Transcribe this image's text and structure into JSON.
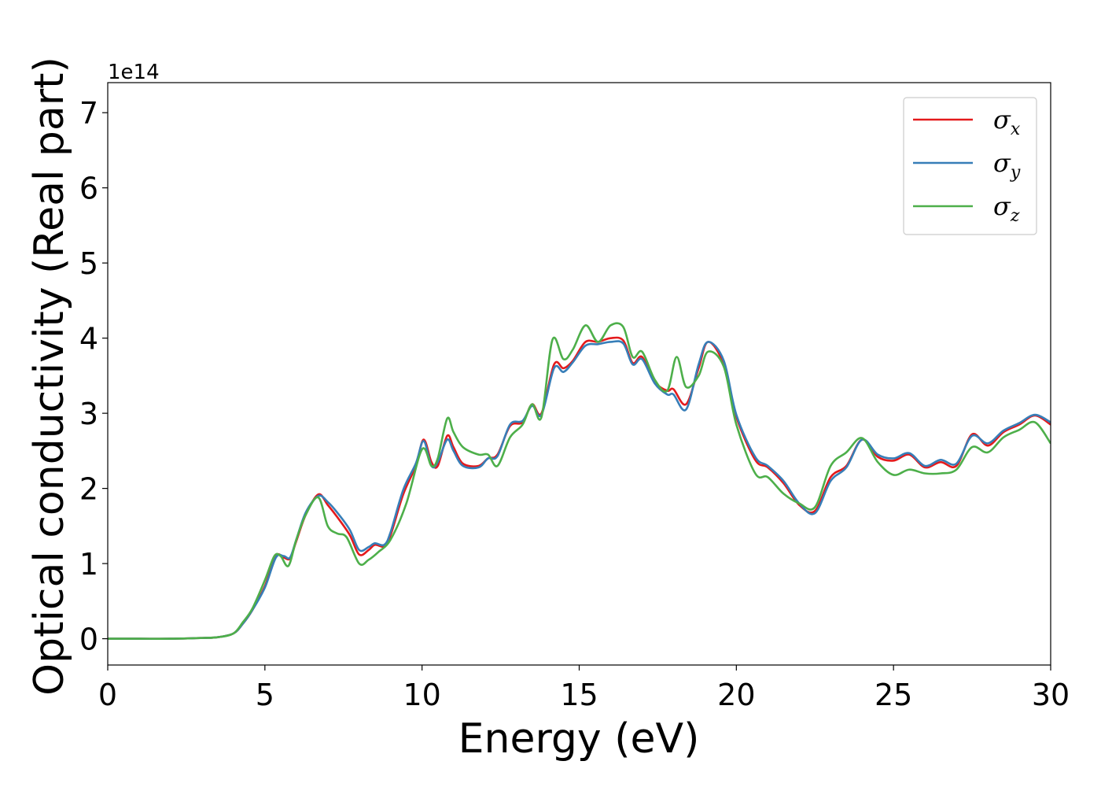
{
  "chart_data": {
    "type": "line",
    "title": "",
    "xlabel": "Energy (eV)",
    "ylabel": "Optical conductivity (Real part)",
    "y_offset_label": "1e14",
    "y_scale_factor": 100000000000000.0,
    "xlim": [
      0,
      30
    ],
    "ylim": [
      -0.35,
      7.4
    ],
    "xticks": [
      0,
      5,
      10,
      15,
      20,
      25,
      30
    ],
    "yticks": [
      0,
      1,
      2,
      3,
      4,
      5,
      6,
      7
    ],
    "grid": false,
    "legend_position": "top-right",
    "series": [
      {
        "name": "σx",
        "legend_symbol": "σ",
        "legend_subscript": "x",
        "color": "#e41a1c",
        "points": [
          [
            0,
            0
          ],
          [
            1,
            0
          ],
          [
            2,
            0
          ],
          [
            3,
            0.01
          ],
          [
            3.5,
            0.02
          ],
          [
            4,
            0.07
          ],
          [
            4.3,
            0.2
          ],
          [
            4.6,
            0.38
          ],
          [
            5,
            0.7
          ],
          [
            5.35,
            1.1
          ],
          [
            5.6,
            1.08
          ],
          [
            5.8,
            1.07
          ],
          [
            6.0,
            1.3
          ],
          [
            6.3,
            1.65
          ],
          [
            6.7,
            1.92
          ],
          [
            7.0,
            1.78
          ],
          [
            7.3,
            1.62
          ],
          [
            7.7,
            1.38
          ],
          [
            8.0,
            1.12
          ],
          [
            8.3,
            1.18
          ],
          [
            8.5,
            1.25
          ],
          [
            8.8,
            1.23
          ],
          [
            9.0,
            1.38
          ],
          [
            9.4,
            1.92
          ],
          [
            9.8,
            2.3
          ],
          [
            10.05,
            2.65
          ],
          [
            10.3,
            2.35
          ],
          [
            10.5,
            2.3
          ],
          [
            10.8,
            2.7
          ],
          [
            11.0,
            2.55
          ],
          [
            11.3,
            2.33
          ],
          [
            11.8,
            2.3
          ],
          [
            12.1,
            2.4
          ],
          [
            12.4,
            2.45
          ],
          [
            12.8,
            2.83
          ],
          [
            13.2,
            2.88
          ],
          [
            13.5,
            3.12
          ],
          [
            13.8,
            3.0
          ],
          [
            14.2,
            3.65
          ],
          [
            14.5,
            3.6
          ],
          [
            14.8,
            3.7
          ],
          [
            15.2,
            3.95
          ],
          [
            15.6,
            3.95
          ],
          [
            16.0,
            4.0
          ],
          [
            16.4,
            3.97
          ],
          [
            16.7,
            3.67
          ],
          [
            17.0,
            3.75
          ],
          [
            17.4,
            3.42
          ],
          [
            17.8,
            3.3
          ],
          [
            18.0,
            3.32
          ],
          [
            18.4,
            3.12
          ],
          [
            18.8,
            3.6
          ],
          [
            19.1,
            3.95
          ],
          [
            19.6,
            3.65
          ],
          [
            20.0,
            2.95
          ],
          [
            20.6,
            2.38
          ],
          [
            21.0,
            2.28
          ],
          [
            21.5,
            2.07
          ],
          [
            22.0,
            1.78
          ],
          [
            22.5,
            1.7
          ],
          [
            23.0,
            2.15
          ],
          [
            23.5,
            2.3
          ],
          [
            24.0,
            2.65
          ],
          [
            24.5,
            2.42
          ],
          [
            25.0,
            2.37
          ],
          [
            25.5,
            2.45
          ],
          [
            26.0,
            2.28
          ],
          [
            26.5,
            2.35
          ],
          [
            27.0,
            2.3
          ],
          [
            27.5,
            2.72
          ],
          [
            28.0,
            2.57
          ],
          [
            28.5,
            2.75
          ],
          [
            29.0,
            2.85
          ],
          [
            29.5,
            2.97
          ],
          [
            30.0,
            2.85
          ]
        ]
      },
      {
        "name": "σy",
        "legend_symbol": "σ",
        "legend_subscript": "y",
        "color": "#377eb8",
        "points": [
          [
            0,
            0
          ],
          [
            1,
            0
          ],
          [
            2,
            0
          ],
          [
            3,
            0.01
          ],
          [
            3.5,
            0.02
          ],
          [
            4,
            0.07
          ],
          [
            4.3,
            0.2
          ],
          [
            4.6,
            0.38
          ],
          [
            5,
            0.68
          ],
          [
            5.35,
            1.08
          ],
          [
            5.6,
            1.1
          ],
          [
            5.8,
            1.08
          ],
          [
            6.0,
            1.32
          ],
          [
            6.3,
            1.68
          ],
          [
            6.7,
            1.9
          ],
          [
            7.0,
            1.82
          ],
          [
            7.3,
            1.68
          ],
          [
            7.7,
            1.45
          ],
          [
            8.0,
            1.18
          ],
          [
            8.3,
            1.22
          ],
          [
            8.5,
            1.27
          ],
          [
            8.8,
            1.25
          ],
          [
            9.0,
            1.42
          ],
          [
            9.4,
            1.98
          ],
          [
            9.8,
            2.33
          ],
          [
            10.05,
            2.63
          ],
          [
            10.3,
            2.3
          ],
          [
            10.5,
            2.35
          ],
          [
            10.8,
            2.65
          ],
          [
            11.0,
            2.5
          ],
          [
            11.3,
            2.3
          ],
          [
            11.8,
            2.28
          ],
          [
            12.1,
            2.4
          ],
          [
            12.4,
            2.43
          ],
          [
            12.8,
            2.85
          ],
          [
            13.2,
            2.9
          ],
          [
            13.5,
            3.1
          ],
          [
            13.8,
            2.98
          ],
          [
            14.2,
            3.6
          ],
          [
            14.5,
            3.55
          ],
          [
            14.8,
            3.68
          ],
          [
            15.2,
            3.9
          ],
          [
            15.6,
            3.92
          ],
          [
            16.0,
            3.95
          ],
          [
            16.4,
            3.93
          ],
          [
            16.7,
            3.65
          ],
          [
            17.0,
            3.72
          ],
          [
            17.4,
            3.4
          ],
          [
            17.8,
            3.25
          ],
          [
            18.0,
            3.25
          ],
          [
            18.4,
            3.05
          ],
          [
            18.8,
            3.65
          ],
          [
            19.1,
            3.95
          ],
          [
            19.6,
            3.7
          ],
          [
            20.0,
            2.98
          ],
          [
            20.6,
            2.42
          ],
          [
            21.0,
            2.3
          ],
          [
            21.5,
            2.1
          ],
          [
            22.0,
            1.8
          ],
          [
            22.5,
            1.67
          ],
          [
            23.0,
            2.1
          ],
          [
            23.5,
            2.28
          ],
          [
            24.0,
            2.65
          ],
          [
            24.5,
            2.45
          ],
          [
            25.0,
            2.4
          ],
          [
            25.5,
            2.47
          ],
          [
            26.0,
            2.3
          ],
          [
            26.5,
            2.38
          ],
          [
            27.0,
            2.33
          ],
          [
            27.5,
            2.7
          ],
          [
            28.0,
            2.6
          ],
          [
            28.5,
            2.77
          ],
          [
            29.0,
            2.87
          ],
          [
            29.5,
            2.98
          ],
          [
            30.0,
            2.88
          ]
        ]
      },
      {
        "name": "σz",
        "legend_symbol": "σ",
        "legend_subscript": "z",
        "color": "#4daf4a",
        "points": [
          [
            0,
            0
          ],
          [
            1,
            0
          ],
          [
            2,
            0
          ],
          [
            3,
            0.01
          ],
          [
            3.5,
            0.02
          ],
          [
            4,
            0.07
          ],
          [
            4.3,
            0.22
          ],
          [
            4.6,
            0.4
          ],
          [
            5,
            0.78
          ],
          [
            5.3,
            1.1
          ],
          [
            5.5,
            1.1
          ],
          [
            5.75,
            0.97
          ],
          [
            6.0,
            1.32
          ],
          [
            6.3,
            1.65
          ],
          [
            6.7,
            1.88
          ],
          [
            7.0,
            1.5
          ],
          [
            7.3,
            1.4
          ],
          [
            7.6,
            1.35
          ],
          [
            8.0,
            1.0
          ],
          [
            8.3,
            1.05
          ],
          [
            8.6,
            1.15
          ],
          [
            9.0,
            1.32
          ],
          [
            9.5,
            1.8
          ],
          [
            10.0,
            2.52
          ],
          [
            10.3,
            2.3
          ],
          [
            10.5,
            2.4
          ],
          [
            10.8,
            2.93
          ],
          [
            11.0,
            2.75
          ],
          [
            11.3,
            2.55
          ],
          [
            11.8,
            2.45
          ],
          [
            12.1,
            2.45
          ],
          [
            12.4,
            2.3
          ],
          [
            12.8,
            2.68
          ],
          [
            13.2,
            2.85
          ],
          [
            13.5,
            3.12
          ],
          [
            13.8,
            2.95
          ],
          [
            14.15,
            3.98
          ],
          [
            14.5,
            3.72
          ],
          [
            14.8,
            3.85
          ],
          [
            15.2,
            4.17
          ],
          [
            15.6,
            3.95
          ],
          [
            16.0,
            4.17
          ],
          [
            16.4,
            4.15
          ],
          [
            16.7,
            3.75
          ],
          [
            17.0,
            3.82
          ],
          [
            17.4,
            3.45
          ],
          [
            17.8,
            3.3
          ],
          [
            18.1,
            3.75
          ],
          [
            18.4,
            3.35
          ],
          [
            18.8,
            3.5
          ],
          [
            19.1,
            3.82
          ],
          [
            19.6,
            3.62
          ],
          [
            20.0,
            2.85
          ],
          [
            20.6,
            2.2
          ],
          [
            21.0,
            2.15
          ],
          [
            21.5,
            1.93
          ],
          [
            22.0,
            1.8
          ],
          [
            22.5,
            1.75
          ],
          [
            23.0,
            2.3
          ],
          [
            23.5,
            2.48
          ],
          [
            24.0,
            2.67
          ],
          [
            24.5,
            2.35
          ],
          [
            25.0,
            2.18
          ],
          [
            25.5,
            2.25
          ],
          [
            26.0,
            2.2
          ],
          [
            26.5,
            2.2
          ],
          [
            27.0,
            2.25
          ],
          [
            27.5,
            2.55
          ],
          [
            28.0,
            2.48
          ],
          [
            28.5,
            2.68
          ],
          [
            29.0,
            2.78
          ],
          [
            29.5,
            2.88
          ],
          [
            30.0,
            2.6
          ]
        ]
      }
    ]
  }
}
